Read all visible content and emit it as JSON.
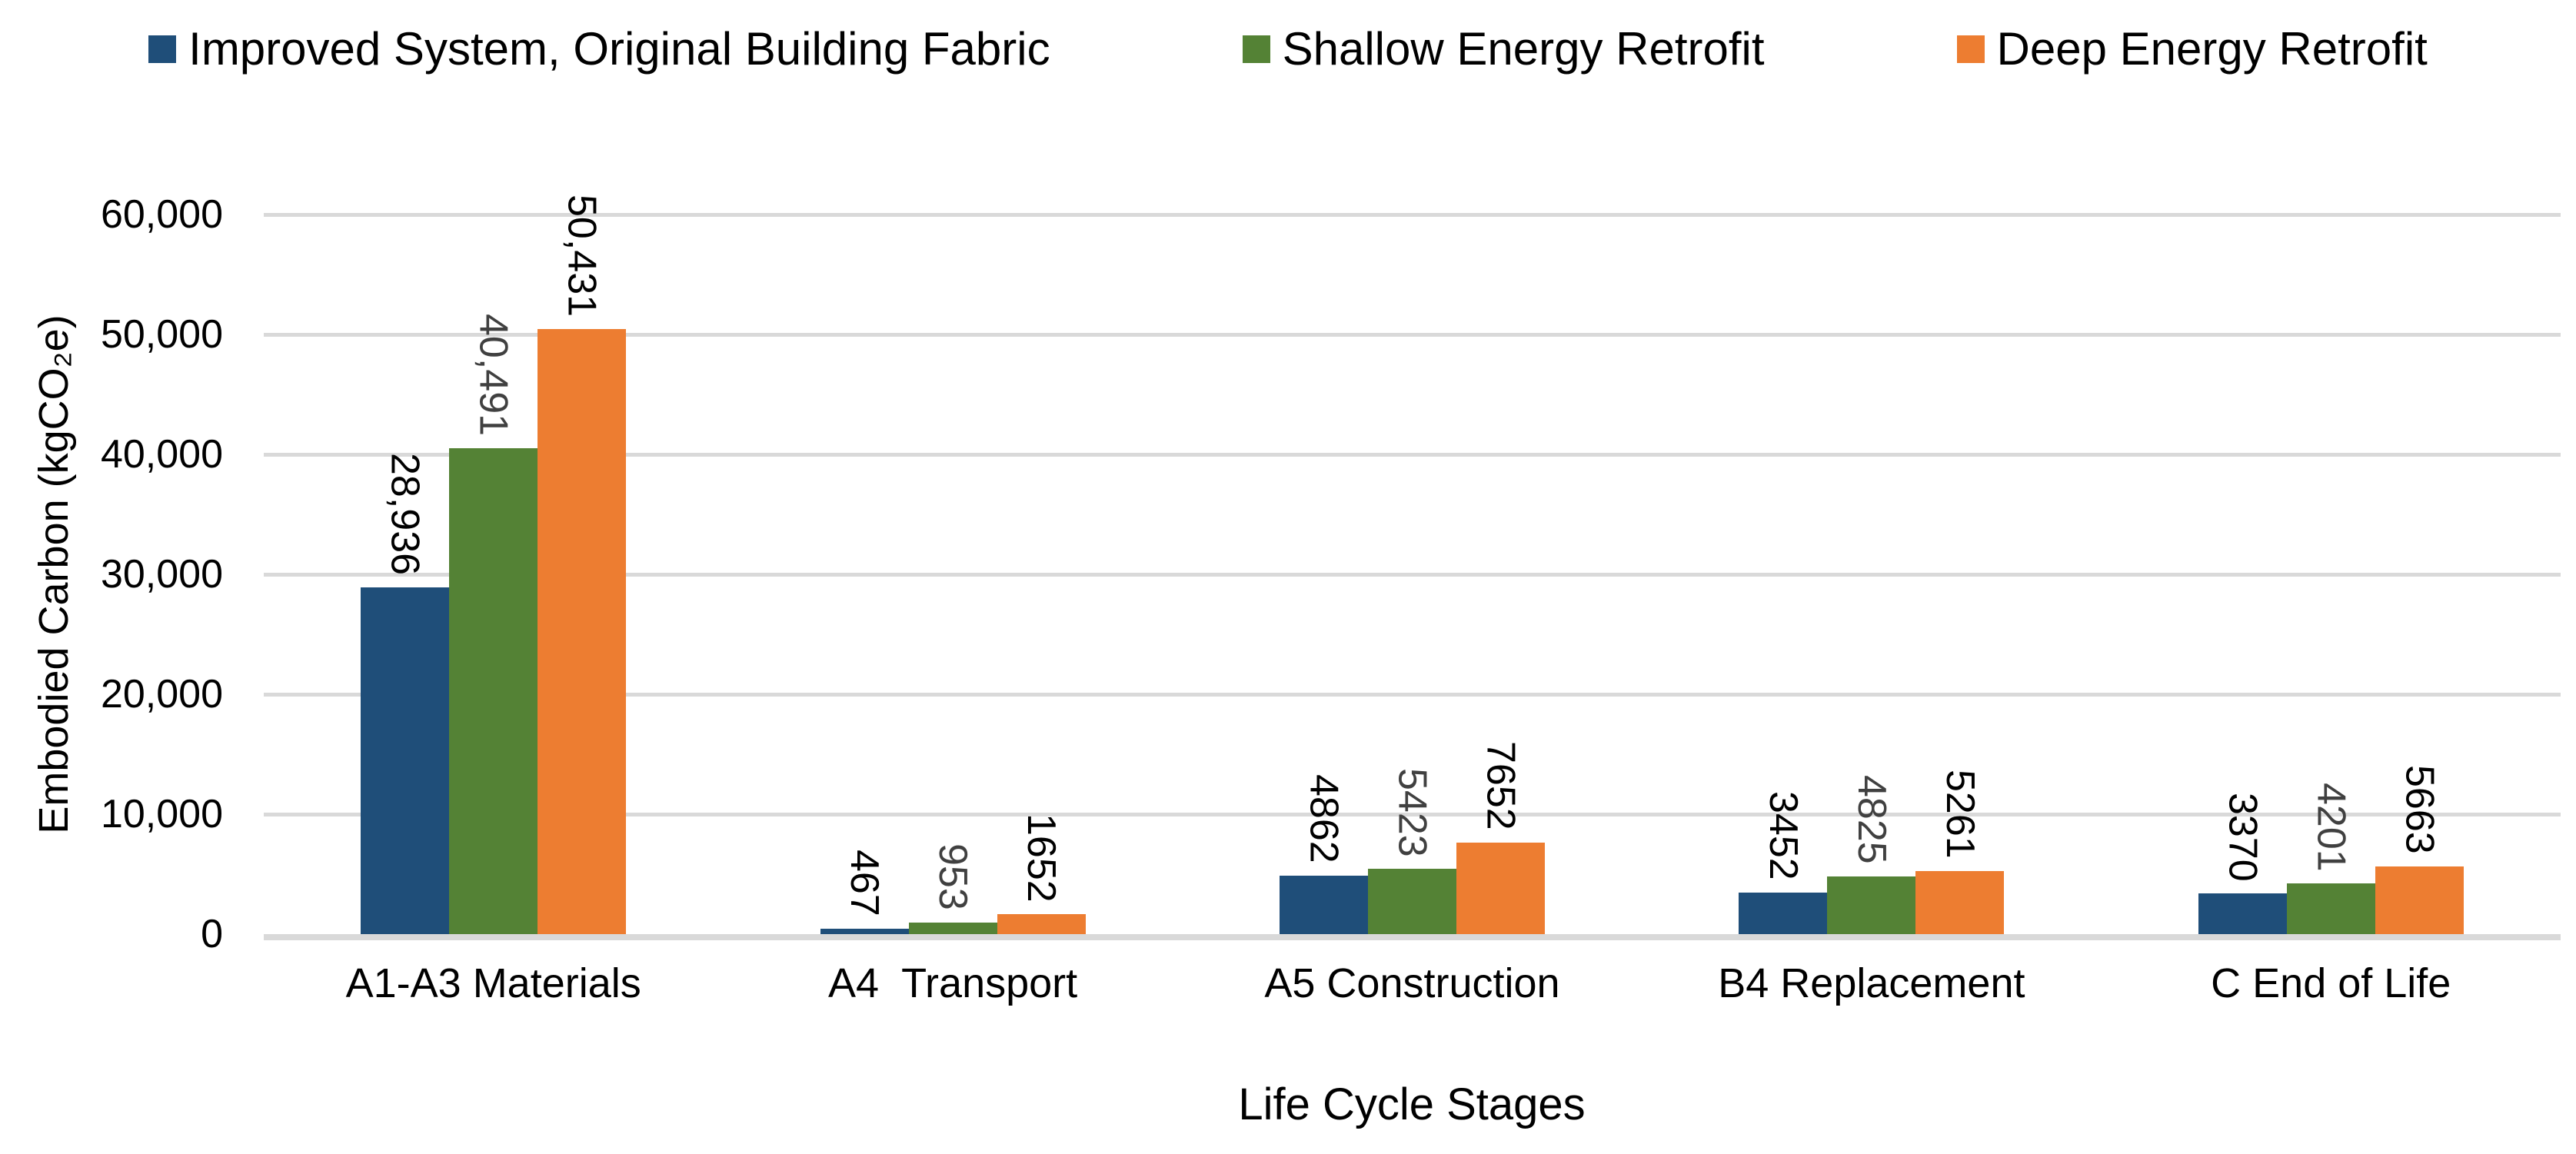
{
  "chart_data": {
    "type": "bar",
    "title": "",
    "xlabel": "Life Cycle Stages",
    "ylabel": "Embodied Carbon (kgCO₂e)",
    "categories": [
      "A1-A3 Materials",
      "A4  Transport",
      "A5 Construction",
      "B4 Replacement",
      "C End of Life"
    ],
    "series": [
      {
        "name": "Improved System, Original Building Fabric",
        "color": "#1F4E79",
        "label_color": "#000000",
        "values": [
          28936,
          467,
          4862,
          3452,
          3370
        ],
        "labels": [
          "28,936",
          "467",
          "4862",
          "3452",
          "3370"
        ]
      },
      {
        "name": "Shallow Energy Retrofit",
        "color": "#548235",
        "label_color": "#404040",
        "values": [
          40491,
          953,
          5423,
          4825,
          4201
        ],
        "labels": [
          "40,491",
          "953",
          "5423",
          "4825",
          "4201"
        ]
      },
      {
        "name": "Deep Energy Retrofit",
        "color": "#ED7D31",
        "label_color": "#000000",
        "values": [
          50431,
          1652,
          7652,
          5261,
          5663
        ],
        "labels": [
          "50,431",
          "1652",
          "7652",
          "5261",
          "5663"
        ]
      }
    ],
    "ylim": [
      0,
      60000
    ],
    "y_ticks": [
      {
        "value": 0,
        "label": "0"
      },
      {
        "value": 10000,
        "label": "10,000"
      },
      {
        "value": 20000,
        "label": "20,000"
      },
      {
        "value": 30000,
        "label": "30,000"
      },
      {
        "value": 40000,
        "label": "40,000"
      },
      {
        "value": 50000,
        "label": "50,000"
      },
      {
        "value": 60000,
        "label": "60,000"
      }
    ],
    "grid": "horizontal",
    "legend_position": "top",
    "colors": {
      "gridline": "#D9D9D9",
      "axis_line": "#D9D9D9",
      "text": "#000000"
    }
  }
}
